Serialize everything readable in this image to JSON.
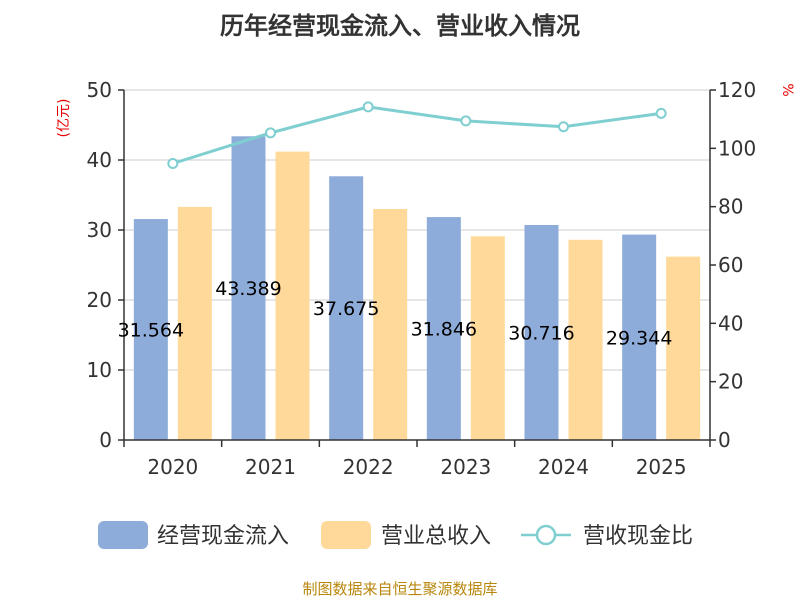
{
  "chart_data": {
    "type": "bar",
    "title": "历年经营现金流入、营业收入情况",
    "categories": [
      "2020",
      "2021",
      "2022",
      "2023",
      "2024",
      "2025"
    ],
    "series": [
      {
        "name": "经营现金流入",
        "kind": "bar",
        "axis": "left",
        "color": "#8eacd9",
        "values": [
          31.564,
          43.389,
          37.675,
          31.846,
          30.716,
          29.344
        ]
      },
      {
        "name": "营业总收入",
        "kind": "bar",
        "axis": "left",
        "color": "#ffd99a",
        "values": [
          33.3,
          41.2,
          33.0,
          29.1,
          28.6,
          26.2
        ]
      },
      {
        "name": "营收现金比",
        "kind": "line",
        "axis": "right",
        "color": "#7fcfd1",
        "values": [
          94.8,
          105.3,
          114.2,
          109.4,
          107.4,
          112.0
        ]
      }
    ],
    "data_labels": [
      "31.564",
      "43.389",
      "37.675",
      "31.846",
      "30.716",
      "29.344"
    ],
    "y_left": {
      "label": "(亿元)",
      "min": 0,
      "max": 50,
      "ticks": [
        0,
        10,
        20,
        30,
        40,
        50
      ]
    },
    "y_right": {
      "label": "%",
      "min": 0,
      "max": 120,
      "ticks": [
        0,
        20,
        40,
        60,
        80,
        100,
        120
      ]
    },
    "grid": true,
    "legend_position": "bottom",
    "source": "制图数据来自恒生聚源数据库"
  }
}
